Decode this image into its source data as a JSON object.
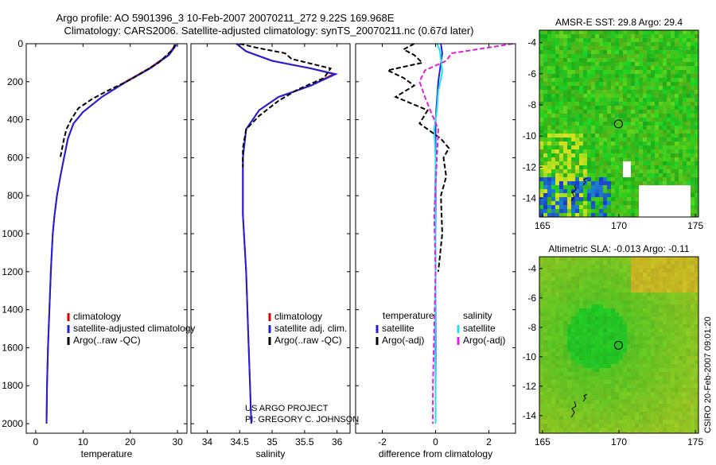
{
  "title": {
    "line1": "Argo profile: AO 5901396_3 10-Feb-2007 20070211_272 9.22S 169.968E",
    "line2": "Climatology: CARS2006. Satellite-adjusted climatology: synTS_20070211.nc (0.67d later)"
  },
  "side_label": "CSIRO 20-Feb-2007 09:01:20",
  "project": {
    "line1": "US ARGO PROJECT",
    "line2": "PI: GREGORY C. JOHNSON"
  },
  "colors": {
    "climatology": "#dd0000",
    "satellite": "#1f1fdd",
    "argo": "#000000",
    "cyan": "#22e0ee",
    "magenta": "#e020e0"
  },
  "chart_data": [
    {
      "type": "line",
      "id": "temperature",
      "xlabel": "temperature",
      "xlim": [
        -2,
        32
      ],
      "ylim": [
        2050,
        0
      ],
      "xticks": [
        0,
        10,
        20,
        30
      ],
      "yticks": [
        0,
        200,
        400,
        600,
        800,
        1000,
        1200,
        1400,
        1600,
        1800,
        2000
      ],
      "legend": [
        "climatology",
        "satellite-adjusted climatology",
        "Argo(..raw -QC)"
      ],
      "series": [
        {
          "name": "climatology",
          "color": "#dd0000",
          "dash": false,
          "x": [
            29.6,
            28,
            24,
            19,
            14,
            10,
            8,
            6.8,
            6,
            5.2,
            4.5,
            4,
            3.6,
            3.2,
            2.9,
            2.6,
            2.4,
            2.3
          ],
          "y": [
            5,
            60,
            130,
            200,
            280,
            360,
            420,
            500,
            600,
            700,
            800,
            900,
            1000,
            1200,
            1400,
            1600,
            1800,
            2000
          ]
        },
        {
          "name": "satellite-adjusted climatology",
          "color": "#1f1fdd",
          "dash": false,
          "x": [
            29.8,
            28.2,
            24.2,
            19.2,
            14,
            10,
            8,
            6.8,
            6,
            5.2,
            4.5,
            4,
            3.6,
            3.2,
            2.9,
            2.6,
            2.4,
            2.3
          ],
          "y": [
            5,
            60,
            130,
            200,
            280,
            360,
            420,
            500,
            600,
            700,
            800,
            900,
            1000,
            1200,
            1400,
            1600,
            1800,
            2000
          ]
        },
        {
          "name": "Argo(..raw -QC)",
          "color": "#000000",
          "dash": true,
          "x": [
            29.4,
            29,
            26,
            20,
            15,
            12,
            9,
            7.5,
            6.5,
            6,
            5.2
          ],
          "y": [
            5,
            30,
            100,
            190,
            250,
            290,
            340,
            400,
            450,
            500,
            600
          ]
        }
      ]
    },
    {
      "type": "line",
      "id": "salinity",
      "xlabel": "salinity",
      "xlim": [
        33.75,
        36.2
      ],
      "ylim": [
        2050,
        0
      ],
      "xticks": [
        34,
        34.5,
        35,
        35.5,
        36
      ],
      "xticklabels": [
        "34",
        "34.5",
        "35",
        "35.5",
        "36"
      ],
      "legend": [
        "climatology",
        "satellite adj. clim.",
        "Argo(..raw -QC)"
      ],
      "series": [
        {
          "name": "climatology",
          "color": "#dd0000",
          "dash": false,
          "x": [
            34.45,
            34.6,
            35.0,
            35.6,
            35.95,
            35.6,
            35.1,
            34.8,
            34.6,
            34.55,
            34.55,
            34.6,
            34.63,
            34.66,
            34.68
          ],
          "y": [
            0,
            40,
            90,
            130,
            160,
            220,
            280,
            350,
            450,
            600,
            900,
            1200,
            1500,
            1800,
            2000
          ]
        },
        {
          "name": "satellite adj. clim.",
          "color": "#1f1fdd",
          "dash": false,
          "x": [
            34.45,
            34.6,
            35.0,
            35.6,
            35.98,
            35.6,
            35.1,
            34.8,
            34.6,
            34.55,
            34.55,
            34.6,
            34.63,
            34.66,
            34.68
          ],
          "y": [
            0,
            40,
            90,
            130,
            160,
            220,
            280,
            350,
            450,
            600,
            900,
            1200,
            1500,
            1800,
            2000
          ]
        },
        {
          "name": "Argo(..raw -QC)",
          "color": "#000000",
          "dash": true,
          "x": [
            34.5,
            34.75,
            35.2,
            35.3,
            35.9,
            35.8,
            35.4,
            35.1,
            34.8,
            34.6,
            34.55,
            34.55
          ],
          "y": [
            0,
            20,
            50,
            80,
            130,
            180,
            240,
            300,
            380,
            450,
            550,
            650
          ]
        }
      ]
    },
    {
      "type": "line",
      "id": "difference",
      "xlabel": "difference from climatology",
      "xlim": [
        -3,
        3
      ],
      "ylim": [
        2050,
        0
      ],
      "xticks": [
        -2,
        0,
        2
      ],
      "legend_headers": [
        "temperature",
        "salinity"
      ],
      "legend": [
        "satellite",
        "Argo(-adj)",
        "satellite",
        "Argo(-adj)"
      ],
      "series": [
        {
          "name": "temperature satellite",
          "color": "#1f1fdd",
          "dash": false,
          "x": [
            0.2,
            0.25,
            0.2,
            0.1,
            0.05,
            0,
            0,
            0,
            0,
            0,
            0,
            0,
            0
          ],
          "y": [
            0,
            50,
            100,
            200,
            300,
            400,
            600,
            800,
            1000,
            1200,
            1500,
            1800,
            2000
          ]
        },
        {
          "name": "salinity satellite",
          "color": "#22e0ee",
          "dash": false,
          "x": [
            0.05,
            0.15,
            0.2,
            0.25,
            0.1,
            0.05,
            -0.05,
            0,
            -0.02,
            0,
            0,
            -0.02,
            0,
            0
          ],
          "y": [
            0,
            30,
            80,
            150,
            250,
            350,
            450,
            600,
            800,
            1000,
            1300,
            1600,
            1800,
            2000
          ]
        },
        {
          "name": "temperature Argo(-adj)",
          "color": "#000000",
          "dash": true,
          "x": [
            -0.8,
            -1.2,
            -0.8,
            -0.5,
            -1.8,
            -1.2,
            -0.8,
            -1.5,
            -0.3,
            -0.6,
            0.2,
            0.5,
            0.3,
            0.4,
            0.2,
            0.25,
            0.1
          ],
          "y": [
            0,
            30,
            60,
            100,
            140,
            180,
            220,
            280,
            350,
            420,
            500,
            550,
            600,
            700,
            800,
            1000,
            1200
          ]
        },
        {
          "name": "salinity Argo(-adj)",
          "color": "#e020e0",
          "dash": true,
          "x": [
            2.9,
            2.0,
            0.6,
            0.4,
            -0.4,
            -0.6,
            -0.4,
            -0.2,
            0.1,
            0.05,
            -0.05,
            0,
            -0.05,
            -0.1,
            -0.1
          ],
          "y": [
            0,
            20,
            50,
            90,
            140,
            200,
            280,
            350,
            450,
            600,
            900,
            1200,
            1500,
            1800,
            2000
          ]
        }
      ]
    },
    {
      "type": "heatmap",
      "id": "sst-map",
      "title": "AMSR-E SST: 29.8 Argo: 29.4",
      "xlim": [
        164.8,
        175.2
      ],
      "ylim": [
        -15.2,
        -3.2
      ],
      "xticks": [
        165,
        170,
        175
      ],
      "yticks": [
        -4,
        -6,
        -8,
        -10,
        -12,
        -14
      ],
      "marker": {
        "lon": 169.968,
        "lat": -9.22
      }
    },
    {
      "type": "heatmap",
      "id": "sla-map",
      "title": "Altimetric SLA: -0.013 Argo: -0.11",
      "xlim": [
        164.8,
        175.2
      ],
      "ylim": [
        -15.2,
        -3.2
      ],
      "xticks": [
        165,
        170,
        175
      ],
      "yticks": [
        -4,
        -6,
        -8,
        -10,
        -12,
        -14
      ],
      "marker": {
        "lon": 169.968,
        "lat": -9.22
      }
    }
  ]
}
